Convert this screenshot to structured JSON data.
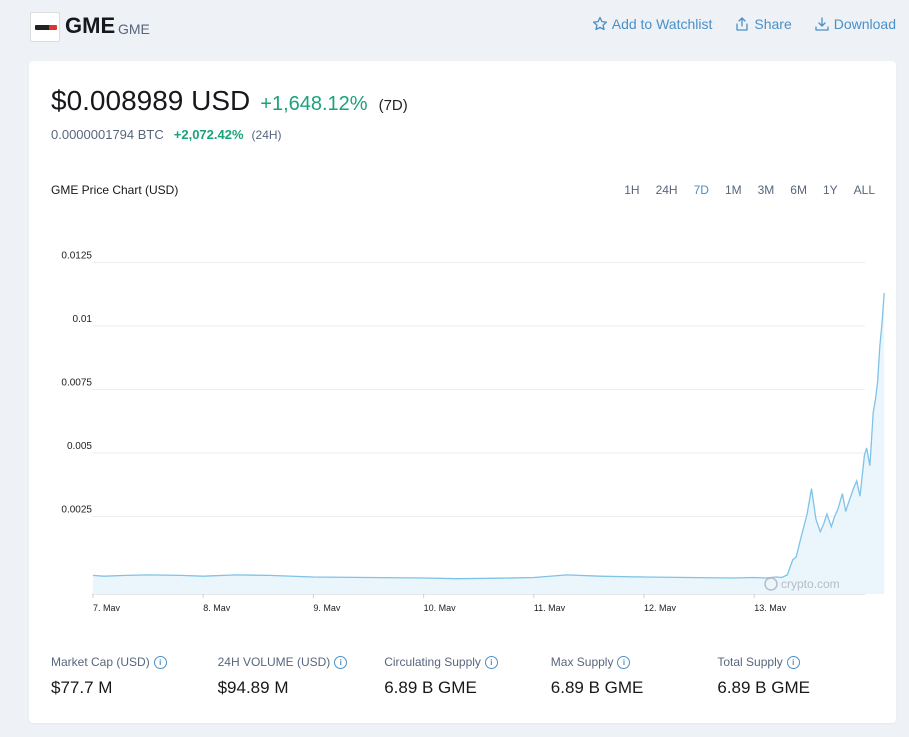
{
  "header": {
    "name": "GME",
    "symbol": "GME",
    "actions": [
      {
        "label": "Add to Watchlist",
        "icon": "star-icon"
      },
      {
        "label": "Share",
        "icon": "share-icon"
      },
      {
        "label": "Download",
        "icon": "download-icon"
      }
    ]
  },
  "price": {
    "usd": "$0.008989 USD",
    "change_7d": "+1,648.12%",
    "period_7d": "(7D)",
    "btc": "0.0000001794 BTC",
    "change_24h": "+2,072.42%",
    "period_24h": "(24H)"
  },
  "chart": {
    "title": "GME Price Chart (USD)",
    "ranges": [
      "1H",
      "24H",
      "7D",
      "1M",
      "3M",
      "6M",
      "1Y",
      "ALL"
    ],
    "active_range": "7D",
    "watermark": "crypto.com"
  },
  "chart_data": {
    "type": "line",
    "title": "GME Price Chart (USD)",
    "xlabel": "",
    "ylabel": "",
    "x_ticks": [
      "7. May",
      "8. May",
      "9. May",
      "10. May",
      "11. May",
      "12. May",
      "13. May"
    ],
    "y_ticks": [
      "0.0025",
      "0.005",
      "0.0075",
      "0.01",
      "0.0125"
    ],
    "ylim": [
      0,
      0.0135
    ],
    "grid": true,
    "line_color": "#7fc3e8",
    "x": [
      0,
      0.1,
      0.3,
      0.5,
      0.8,
      1.0,
      1.3,
      1.6,
      2.0,
      2.5,
      3.0,
      3.3,
      3.7,
      4.0,
      4.3,
      4.6,
      5.0,
      5.4,
      5.8,
      6.0,
      6.1,
      6.2,
      6.25,
      6.3,
      6.35,
      6.38,
      6.42,
      6.48,
      6.52,
      6.56,
      6.6,
      6.63,
      6.66,
      6.7,
      6.73,
      6.76,
      6.8,
      6.83,
      6.86,
      6.9,
      6.93,
      6.96,
      7.0,
      7.02,
      7.05,
      7.08,
      7.1,
      7.12,
      7.14,
      7.16,
      7.18
    ],
    "series": [
      {
        "values": [
          0.00018,
          0.00015,
          0.00018,
          0.0002,
          0.00018,
          0.00015,
          0.0002,
          0.00018,
          0.00012,
          0.0001,
          8e-05,
          5e-05,
          7e-05,
          0.0001,
          0.0002,
          0.00015,
          0.00012,
          0.0001,
          8e-05,
          0.0001,
          8e-05,
          0.00012,
          0.0001,
          0.0002,
          0.0008,
          0.0009,
          0.0016,
          0.0026,
          0.0036,
          0.0024,
          0.0019,
          0.0022,
          0.0026,
          0.0021,
          0.0025,
          0.0028,
          0.0034,
          0.0027,
          0.0031,
          0.0036,
          0.0039,
          0.0033,
          0.0049,
          0.0052,
          0.0045,
          0.0066,
          0.0071,
          0.0078,
          0.0092,
          0.0101,
          0.0113
        ]
      }
    ]
  },
  "stats": [
    {
      "label": "Market Cap (USD)",
      "value": "$77.7 M"
    },
    {
      "label": "24H VOLUME (USD)",
      "value": "$94.89 M"
    },
    {
      "label": "Circulating Supply",
      "value": "6.89 B GME"
    },
    {
      "label": "Max Supply",
      "value": "6.89 B GME"
    },
    {
      "label": "Total Supply",
      "value": "6.89 B GME"
    }
  ]
}
